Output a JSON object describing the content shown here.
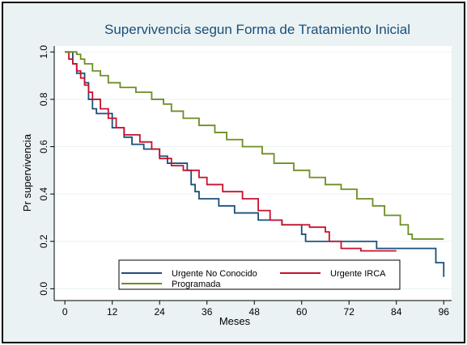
{
  "chart_data": {
    "type": "step",
    "title": "Supervivencia segun Forma de Tratamiento Inicial",
    "x_label": "Meses",
    "y_label": "Pr supervivencia",
    "xlim": [
      -2.7,
      98
    ],
    "ylim": [
      -0.05,
      1.025
    ],
    "xticks": [
      0,
      12,
      24,
      36,
      48,
      60,
      72,
      84,
      96
    ],
    "yticks": [
      {
        "value": 0,
        "label": "0.0"
      },
      0.2,
      0.4,
      0.6,
      0.8,
      {
        "value": 1,
        "label": "1.0"
      }
    ],
    "grid": true,
    "legend": "bottom",
    "series": [
      {
        "name": "Urgente No Conocido",
        "color": "#1a4f7a",
        "x": [
          0,
          2,
          3,
          5,
          6,
          7,
          8,
          12,
          15,
          17,
          20,
          24,
          26,
          31,
          32,
          33,
          34,
          39,
          43,
          49,
          55,
          60,
          61,
          79,
          94,
          96
        ],
        "values": [
          1.0,
          0.95,
          0.91,
          0.87,
          0.8,
          0.76,
          0.74,
          0.68,
          0.64,
          0.61,
          0.59,
          0.56,
          0.53,
          0.5,
          0.44,
          0.41,
          0.38,
          0.35,
          0.32,
          0.29,
          0.27,
          0.23,
          0.2,
          0.17,
          0.11,
          0.05
        ]
      },
      {
        "name": "Urgente IRCA",
        "color": "#c8102e",
        "x": [
          0,
          1,
          2,
          3,
          4,
          5,
          6,
          7,
          9,
          11,
          13,
          15,
          19,
          22,
          24,
          27,
          30,
          34,
          36,
          40,
          45,
          49,
          52,
          55,
          62,
          66,
          67,
          70,
          75,
          84
        ],
        "values": [
          1.0,
          0.97,
          0.95,
          0.92,
          0.89,
          0.86,
          0.83,
          0.8,
          0.76,
          0.72,
          0.68,
          0.65,
          0.62,
          0.59,
          0.55,
          0.52,
          0.5,
          0.47,
          0.44,
          0.41,
          0.38,
          0.33,
          0.29,
          0.27,
          0.26,
          0.24,
          0.2,
          0.17,
          0.16,
          0.16
        ]
      },
      {
        "name": "Programada",
        "color": "#6b8e23",
        "x": [
          0,
          3,
          4,
          5,
          7,
          9,
          11,
          14,
          18,
          22,
          25,
          27,
          30,
          34,
          38,
          41,
          45,
          50,
          53,
          58,
          62,
          66,
          70,
          74,
          78,
          81,
          85,
          87,
          88,
          96
        ],
        "values": [
          1.0,
          0.99,
          0.97,
          0.95,
          0.92,
          0.9,
          0.87,
          0.85,
          0.83,
          0.8,
          0.78,
          0.75,
          0.72,
          0.69,
          0.66,
          0.63,
          0.6,
          0.57,
          0.53,
          0.5,
          0.47,
          0.44,
          0.42,
          0.38,
          0.35,
          0.31,
          0.27,
          0.23,
          0.21,
          0.21
        ]
      }
    ]
  }
}
